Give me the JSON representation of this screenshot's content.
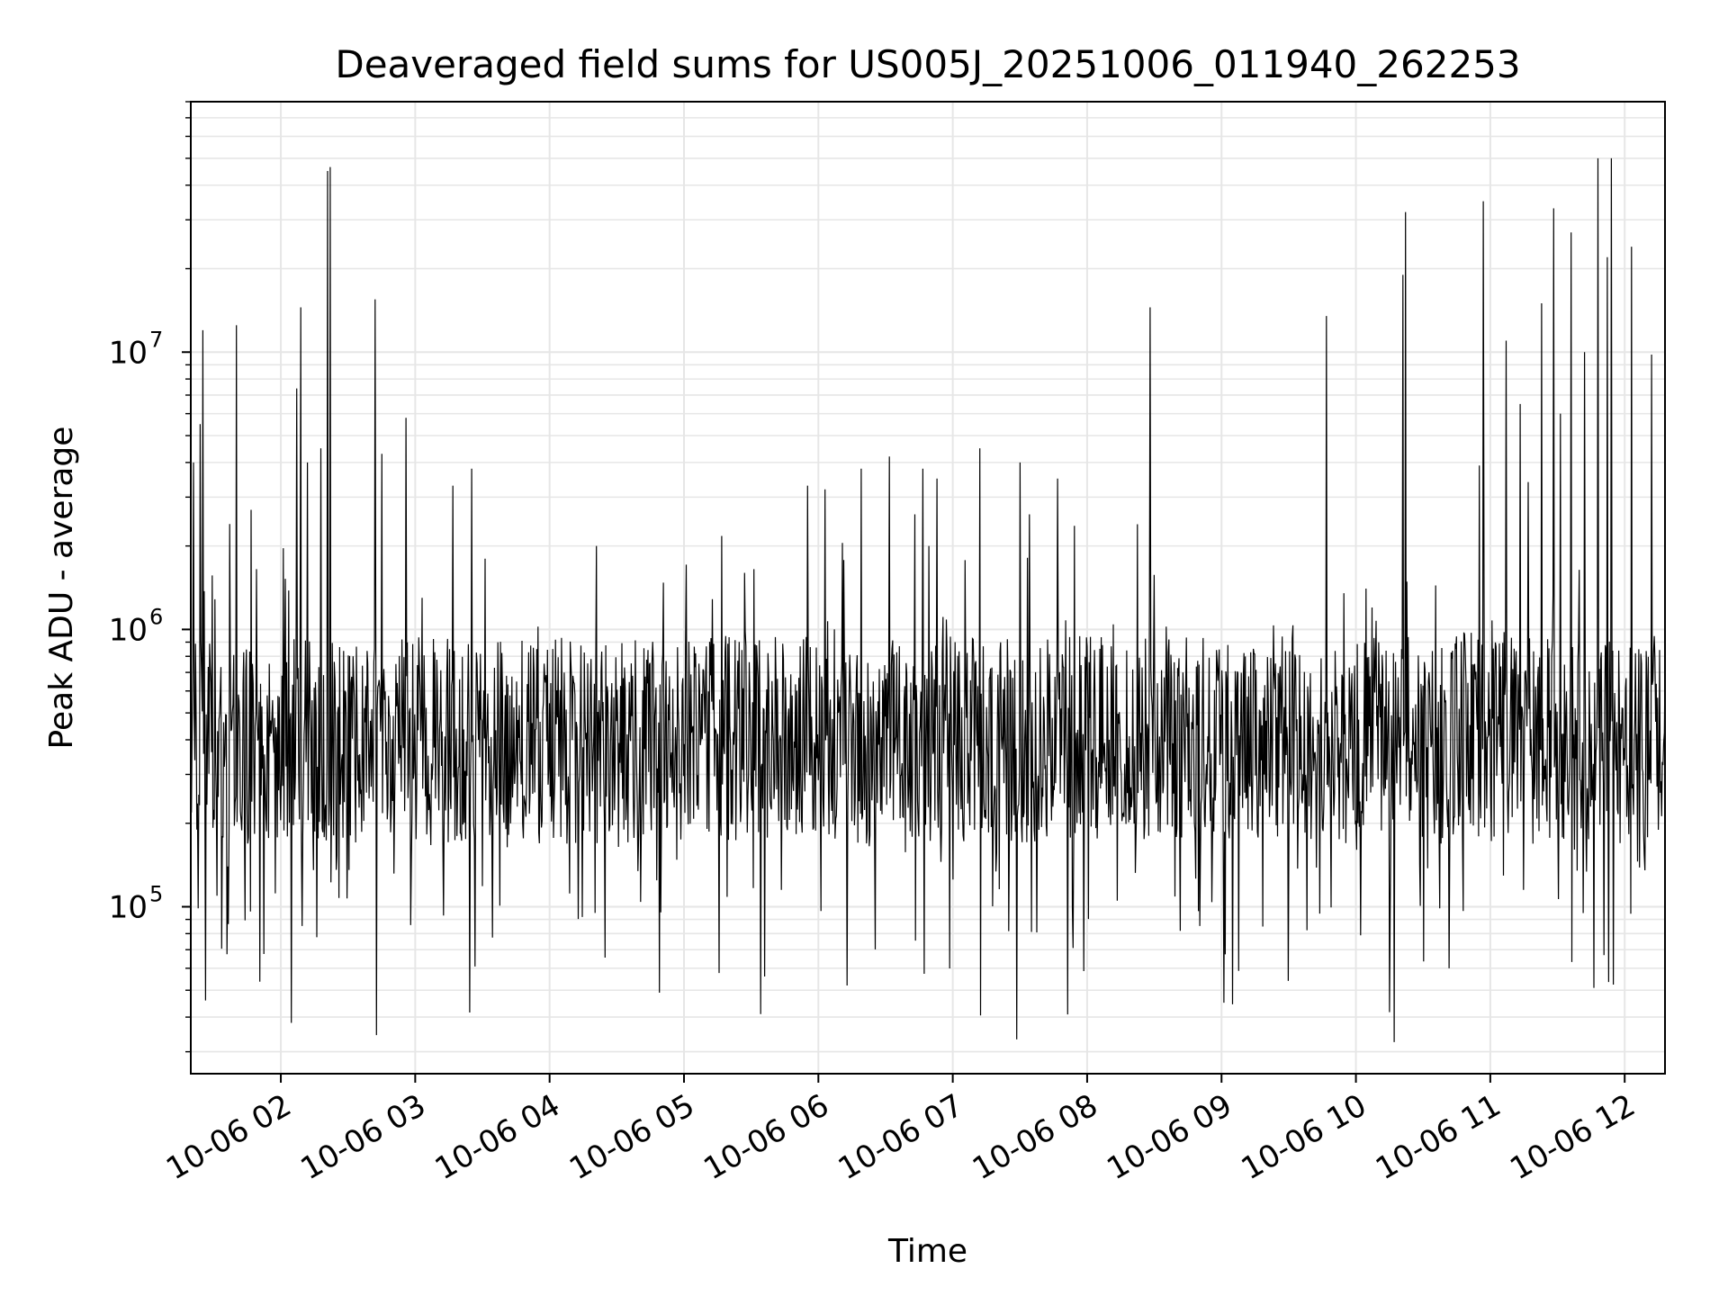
{
  "chart_data": {
    "type": "line",
    "title": "Deaveraged field sums for US005J_20251006_011940_262253",
    "xlabel": "Time",
    "ylabel": "Peak ADU - average",
    "yscale": "log",
    "ylim": [
      25000,
      80000000
    ],
    "xlim_hours": [
      1.33,
      12.3
    ],
    "grid": true,
    "x_ticks": [
      {
        "hour": 2,
        "label": "10-06 02"
      },
      {
        "hour": 3,
        "label": "10-06 03"
      },
      {
        "hour": 4,
        "label": "10-06 04"
      },
      {
        "hour": 5,
        "label": "10-06 05"
      },
      {
        "hour": 6,
        "label": "10-06 06"
      },
      {
        "hour": 7,
        "label": "10-06 07"
      },
      {
        "hour": 8,
        "label": "10-06 08"
      },
      {
        "hour": 9,
        "label": "10-06 09"
      },
      {
        "hour": 10,
        "label": "10-06 10"
      },
      {
        "hour": 11,
        "label": "10-06 11"
      },
      {
        "hour": 12,
        "label": "10-06 12"
      }
    ],
    "y_ticks": [
      {
        "value": 100000,
        "base": "10",
        "exp": "5"
      },
      {
        "value": 1000000,
        "base": "10",
        "exp": "6"
      },
      {
        "value": 10000000,
        "base": "10",
        "exp": "7"
      }
    ],
    "series": [
      {
        "name": "deaveraged field sum",
        "color": "#000000",
        "base_level": 400000,
        "spikes": [
          {
            "hour": 1.35,
            "value": 4000000
          },
          {
            "hour": 1.4,
            "value": 5500000
          },
          {
            "hour": 1.42,
            "value": 12000000
          },
          {
            "hour": 1.62,
            "value": 2400000
          },
          {
            "hour": 1.67,
            "value": 12500000
          },
          {
            "hour": 1.78,
            "value": 2700000
          },
          {
            "hour": 1.82,
            "value": 1650000
          },
          {
            "hour": 2.12,
            "value": 7400000
          },
          {
            "hour": 2.15,
            "value": 14500000
          },
          {
            "hour": 2.2,
            "value": 4000000
          },
          {
            "hour": 2.3,
            "value": 4500000
          },
          {
            "hour": 2.35,
            "value": 45000000
          },
          {
            "hour": 2.37,
            "value": 46500000
          },
          {
            "hour": 2.7,
            "value": 15500000
          },
          {
            "hour": 2.75,
            "value": 4300000
          },
          {
            "hour": 2.93,
            "value": 5800000
          },
          {
            "hour": 3.05,
            "value": 1300000
          },
          {
            "hour": 3.28,
            "value": 3300000
          },
          {
            "hour": 3.42,
            "value": 3800000
          },
          {
            "hour": 3.52,
            "value": 1800000
          },
          {
            "hour": 4.35,
            "value": 2000000
          },
          {
            "hour": 5.45,
            "value": 1600000
          },
          {
            "hour": 5.52,
            "value": 1650000
          },
          {
            "hour": 5.92,
            "value": 3300000
          },
          {
            "hour": 6.05,
            "value": 3200000
          },
          {
            "hour": 6.18,
            "value": 2050000
          },
          {
            "hour": 6.32,
            "value": 3800000
          },
          {
            "hour": 6.53,
            "value": 4200000
          },
          {
            "hour": 6.72,
            "value": 2600000
          },
          {
            "hour": 6.78,
            "value": 3800000
          },
          {
            "hour": 6.82,
            "value": 2000000
          },
          {
            "hour": 6.88,
            "value": 3500000
          },
          {
            "hour": 7.2,
            "value": 4500000
          },
          {
            "hour": 7.5,
            "value": 4000000
          },
          {
            "hour": 7.57,
            "value": 2600000
          },
          {
            "hour": 7.78,
            "value": 3500000
          },
          {
            "hour": 8.47,
            "value": 14500000
          },
          {
            "hour": 9.78,
            "value": 13500000
          },
          {
            "hour": 10.12,
            "value": 1200000
          },
          {
            "hour": 10.35,
            "value": 19000000
          },
          {
            "hour": 10.37,
            "value": 32000000
          },
          {
            "hour": 10.92,
            "value": 3900000
          },
          {
            "hour": 10.95,
            "value": 35000000
          },
          {
            "hour": 11.12,
            "value": 11000000
          },
          {
            "hour": 11.22,
            "value": 6500000
          },
          {
            "hour": 11.28,
            "value": 3400000
          },
          {
            "hour": 11.38,
            "value": 15000000
          },
          {
            "hour": 11.47,
            "value": 33000000
          },
          {
            "hour": 11.52,
            "value": 6000000
          },
          {
            "hour": 11.6,
            "value": 27000000
          },
          {
            "hour": 11.7,
            "value": 10000000
          },
          {
            "hour": 11.8,
            "value": 50000000
          },
          {
            "hour": 11.87,
            "value": 22000000
          },
          {
            "hour": 11.9,
            "value": 50000000
          },
          {
            "hour": 12.05,
            "value": 24000000
          },
          {
            "hour": 12.2,
            "value": 9800000
          }
        ]
      }
    ]
  }
}
